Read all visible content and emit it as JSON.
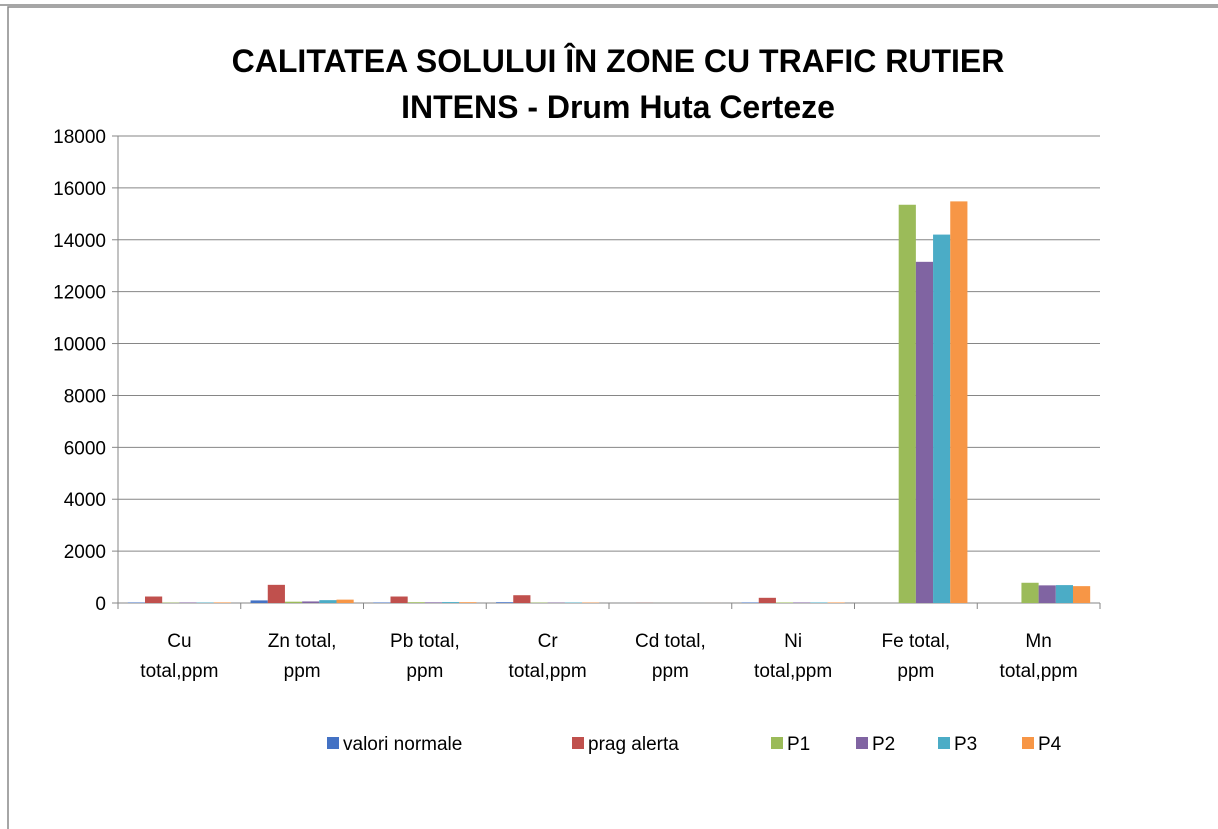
{
  "chart_data": {
    "type": "bar",
    "title": "CALITATEA SOLULUI ÎN ZONE CU TRAFIC RUTIER\nINTENS - Drum Huta Certeze",
    "categories": [
      "Cu\ntotal,ppm",
      "Zn total,\nppm",
      "Pb total,\nppm",
      "Cr\ntotal,ppm",
      "Cd total,\nppm",
      "Ni\ntotal,ppm",
      "Fe total,\nppm",
      "Mn\ntotal,ppm"
    ],
    "series": [
      {
        "name": "valori normale",
        "color": "#4472c4",
        "values": [
          20,
          100,
          20,
          30,
          1,
          20,
          0,
          0
        ]
      },
      {
        "name": "prag alerta",
        "color": "#c0504d",
        "values": [
          250,
          700,
          250,
          300,
          5,
          200,
          0,
          0
        ]
      },
      {
        "name": "P1",
        "color": "#9bbb59",
        "values": [
          15,
          50,
          30,
          15,
          1,
          20,
          15350,
          780
        ]
      },
      {
        "name": "P2",
        "color": "#8064a2",
        "values": [
          20,
          60,
          25,
          15,
          1,
          20,
          13150,
          680
        ]
      },
      {
        "name": "P3",
        "color": "#4bacc6",
        "values": [
          18,
          110,
          35,
          18,
          1,
          20,
          14200,
          690
        ]
      },
      {
        "name": "P4",
        "color": "#f79646",
        "values": [
          22,
          130,
          30,
          16,
          1,
          20,
          15480,
          650
        ]
      }
    ],
    "ylim": [
      0,
      18000
    ],
    "yticks": [
      0,
      2000,
      4000,
      6000,
      8000,
      10000,
      12000,
      14000,
      16000,
      18000
    ],
    "grid": true,
    "legend": "bottom"
  }
}
